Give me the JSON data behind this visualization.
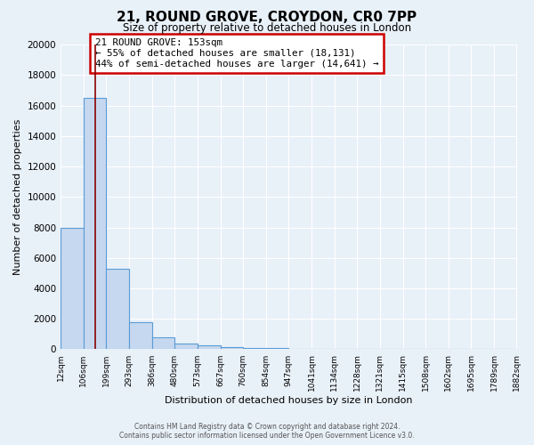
{
  "title": "21, ROUND GROVE, CROYDON, CR0 7PP",
  "subtitle": "Size of property relative to detached houses in London",
  "xlabel": "Distribution of detached houses by size in London",
  "ylabel": "Number of detached properties",
  "bin_edges": [
    12,
    106,
    199,
    293,
    386,
    480,
    573,
    667,
    760,
    854,
    947,
    1041,
    1134,
    1228,
    1321,
    1415,
    1508,
    1602,
    1695,
    1789,
    1882
  ],
  "bar_heights": [
    8000,
    16500,
    5300,
    1800,
    800,
    350,
    250,
    150,
    100,
    75,
    50,
    30,
    20,
    0,
    0,
    0,
    0,
    0,
    0,
    0
  ],
  "bar_color": "#c5d8ef",
  "bar_edge_color": "#5b9bd5",
  "bar_edge_width": 0.8,
  "background_color": "#e8f0f8",
  "grid_color": "#ffffff",
  "property_size": 153,
  "red_line_color": "#8b0000",
  "annotation_title": "21 ROUND GROVE: 153sqm",
  "annotation_line1": "← 55% of detached houses are smaller (18,131)",
  "annotation_line2": "44% of semi-detached houses are larger (14,641) →",
  "annotation_box_color": "#ffffff",
  "annotation_border_color": "#cc0000",
  "ylim": [
    0,
    20000
  ],
  "yticks": [
    0,
    2000,
    4000,
    6000,
    8000,
    10000,
    12000,
    14000,
    16000,
    18000,
    20000
  ],
  "tick_labels": [
    "12sqm",
    "106sqm",
    "199sqm",
    "293sqm",
    "386sqm",
    "480sqm",
    "573sqm",
    "667sqm",
    "760sqm",
    "854sqm",
    "947sqm",
    "1041sqm",
    "1134sqm",
    "1228sqm",
    "1321sqm",
    "1415sqm",
    "1508sqm",
    "1602sqm",
    "1695sqm",
    "1789sqm",
    "1882sqm"
  ],
  "footer_line1": "Contains HM Land Registry data © Crown copyright and database right 2024.",
  "footer_line2": "Contains public sector information licensed under the Open Government Licence v3.0."
}
